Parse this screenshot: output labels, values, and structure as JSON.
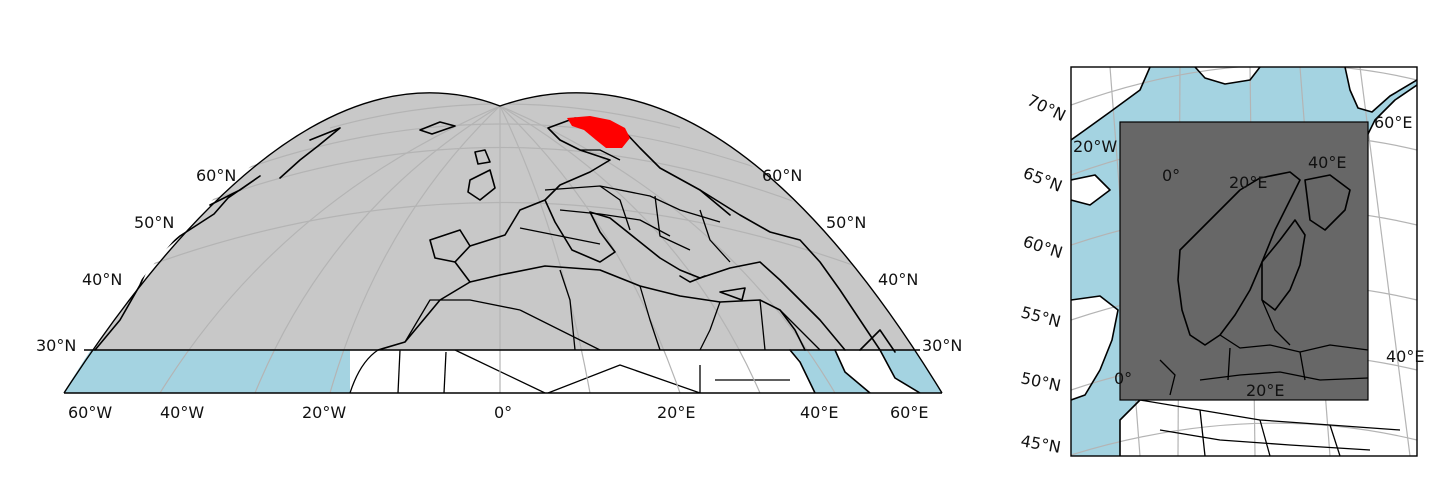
{
  "colors": {
    "globe_fill": "#c8c8c8",
    "ocean": "#a4d3e1",
    "land": "#ffffff",
    "highlight_region": "#ff0000",
    "extent_box": "#676767",
    "gridline": "#b4b4b4",
    "outline": "#000000"
  },
  "main_map": {
    "lat_labels_left": [
      "60°N",
      "50°N",
      "40°N",
      "30°N"
    ],
    "lat_labels_right": [
      "60°N",
      "50°N",
      "40°N",
      "30°N"
    ],
    "lon_labels": [
      "60°W",
      "40°W",
      "20°W",
      "0°",
      "20°E",
      "40°E",
      "60°E"
    ]
  },
  "inset_map": {
    "lat_labels": [
      "70°N",
      "65°N",
      "60°N",
      "55°N",
      "50°N",
      "45°N"
    ],
    "lon_labels_outer": [
      "60°E",
      "40°E"
    ],
    "lon_labels_inner": [
      "20°W",
      "0°",
      "20°E",
      "40°E",
      "0°",
      "20°E"
    ]
  }
}
